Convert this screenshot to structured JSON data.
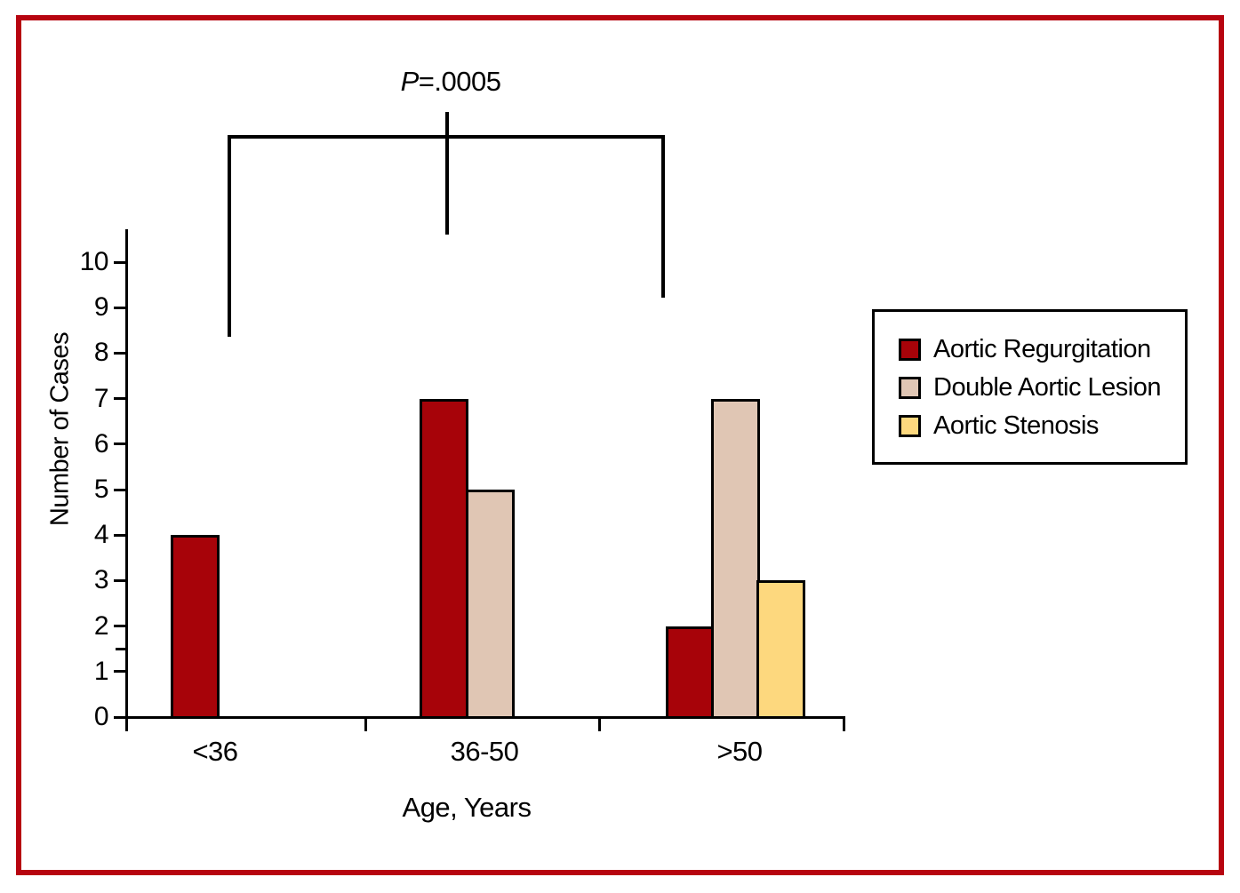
{
  "frame": {
    "border_color": "#b70410",
    "background": "#ffffff"
  },
  "annotation": {
    "p_italic": "P",
    "p_rest": "=.0005"
  },
  "chart_data": {
    "type": "bar",
    "title": "",
    "xlabel": "Age, Years",
    "ylabel": "Number of Cases",
    "categories": [
      "<36",
      "36-50",
      ">50"
    ],
    "series": [
      {
        "name": "Aortic Regurgitation",
        "color": "#a70309",
        "values": [
          4,
          7,
          2
        ]
      },
      {
        "name": "Double Aortic Lesion",
        "color": "#e0c6b4",
        "values": [
          null,
          5,
          7
        ]
      },
      {
        "name": "Aortic Stenosis",
        "color": "#fdd87e",
        "values": [
          null,
          null,
          3
        ]
      }
    ],
    "ylim": [
      0,
      10
    ],
    "yticks": [
      0,
      1,
      2,
      3,
      4,
      5,
      6,
      7,
      8,
      9,
      10
    ],
    "y_minor_ticks": [
      1.5
    ],
    "grid": false,
    "legend_position": "right",
    "significance": {
      "label": "P=.0005",
      "between": [
        "<36",
        ">50"
      ]
    }
  }
}
